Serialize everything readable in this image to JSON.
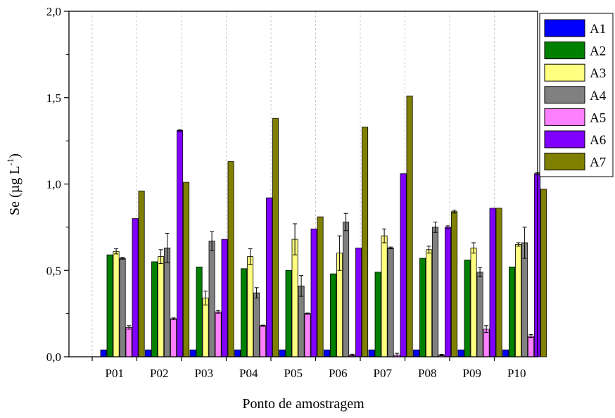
{
  "chart_data": {
    "type": "bar",
    "xlabel": "Ponto de amostragem",
    "ylabel": "Se (µg L",
    "ylabel_sup": "-1",
    "ylabel_close": ")",
    "ylim": [
      0,
      2.0
    ],
    "yticks": [
      "0,0",
      "0,5",
      "1,0",
      "1,5",
      "2,0"
    ],
    "grid": "vertical dashed",
    "legend_position": "right",
    "categories": [
      "P01",
      "P02",
      "P03",
      "P04",
      "P05",
      "P06",
      "P07",
      "P08",
      "P09",
      "P10"
    ],
    "series": [
      {
        "name": "A1",
        "color": "#0000ff",
        "values": [
          0.04,
          0.04,
          0.04,
          0.04,
          0.04,
          0.04,
          0.04,
          0.04,
          0.04,
          0.04
        ],
        "errors": [
          0,
          0,
          0,
          0,
          0,
          0,
          0,
          0,
          0,
          0
        ]
      },
      {
        "name": "A2",
        "color": "#008000",
        "values": [
          0.59,
          0.55,
          0.52,
          0.51,
          0.5,
          0.48,
          0.49,
          0.57,
          0.56,
          0.52
        ],
        "errors": [
          0,
          0,
          0,
          0,
          0,
          0,
          0,
          0,
          0,
          0
        ]
      },
      {
        "name": "A3",
        "color": "#ffff80",
        "values": [
          0.61,
          0.58,
          0.34,
          0.58,
          0.68,
          0.6,
          0.7,
          0.62,
          0.63,
          0.65
        ],
        "errors": [
          0.015,
          0.04,
          0.04,
          0.045,
          0.09,
          0.1,
          0.04,
          0.02,
          0.03,
          0.01
        ]
      },
      {
        "name": "A4",
        "color": "#808080",
        "values": [
          0.57,
          0.63,
          0.67,
          0.37,
          0.41,
          0.78,
          0.63,
          0.75,
          0.49,
          0.66
        ],
        "errors": [
          0.005,
          0.085,
          0.055,
          0.03,
          0.06,
          0.05,
          0.005,
          0.03,
          0.025,
          0.09
        ]
      },
      {
        "name": "A5",
        "color": "#ff80ff",
        "values": [
          0.17,
          0.22,
          0.26,
          0.18,
          0.25,
          0.01,
          0.01,
          0.01,
          0.16,
          0.12
        ],
        "errors": [
          0.01,
          0.005,
          0.008,
          0.003,
          0.003,
          0.005,
          0.01,
          0.004,
          0.02,
          0.008
        ]
      },
      {
        "name": "A6",
        "color": "#8000ff",
        "values": [
          0.8,
          1.31,
          0.68,
          0.92,
          0.74,
          0.63,
          1.06,
          0.75,
          0.86,
          1.06
        ],
        "errors": [
          0,
          0.005,
          0,
          0,
          0,
          0,
          0,
          0.008,
          0,
          0.005
        ]
      },
      {
        "name": "A7",
        "color": "#808000",
        "values": [
          0.96,
          1.01,
          1.13,
          1.38,
          0.81,
          1.33,
          1.51,
          0.84,
          0.86,
          0.97
        ],
        "errors": [
          0,
          0,
          0,
          0,
          0,
          0,
          0,
          0.008,
          0,
          0
        ]
      }
    ]
  }
}
